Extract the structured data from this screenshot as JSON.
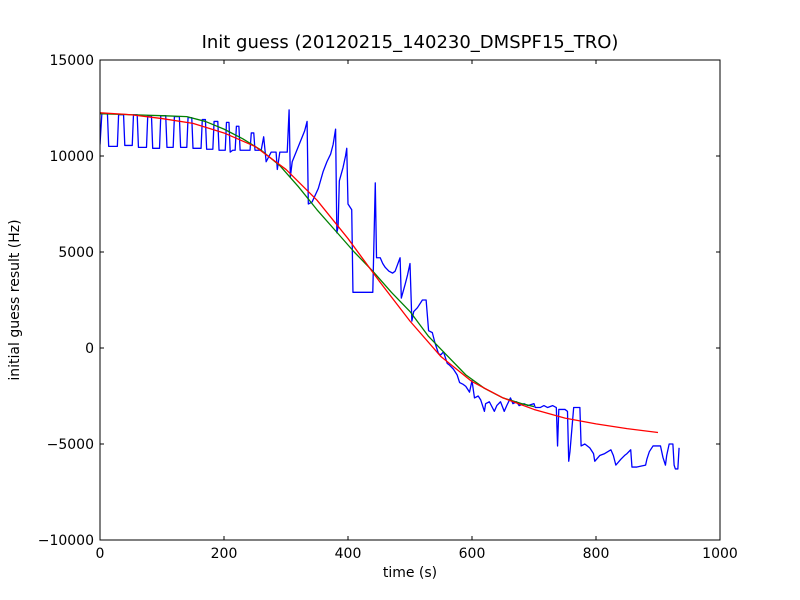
{
  "chart_data": {
    "type": "line",
    "title": "Init guess (20120215_140230_DMSPF15_TRO)",
    "xlabel": "time (s)",
    "ylabel": "initial guess result (Hz)",
    "xlim": [
      0,
      1000
    ],
    "ylim": [
      -10000,
      15000
    ],
    "xticks": [
      "0",
      "200",
      "400",
      "600",
      "800",
      "1000"
    ],
    "yticks": [
      "−10000",
      "−5000",
      "0",
      "5000",
      "10000",
      "15000"
    ],
    "grid": false,
    "legend": "none",
    "series": [
      {
        "color": "#0000ff",
        "points": [
          [
            0,
            10600
          ],
          [
            3,
            12200
          ],
          [
            12,
            12200
          ],
          [
            14,
            10500
          ],
          [
            28,
            10500
          ],
          [
            30,
            12150
          ],
          [
            38,
            12150
          ],
          [
            40,
            10550
          ],
          [
            52,
            10550
          ],
          [
            54,
            12150
          ],
          [
            60,
            12150
          ],
          [
            62,
            10450
          ],
          [
            75,
            10450
          ],
          [
            77,
            12100
          ],
          [
            83,
            12100
          ],
          [
            85,
            10400
          ],
          [
            96,
            10400
          ],
          [
            98,
            12100
          ],
          [
            106,
            12100
          ],
          [
            108,
            10450
          ],
          [
            118,
            10450
          ],
          [
            120,
            12050
          ],
          [
            128,
            12050
          ],
          [
            130,
            10450
          ],
          [
            140,
            10450
          ],
          [
            142,
            12000
          ],
          [
            148,
            12000
          ],
          [
            150,
            10400
          ],
          [
            163,
            10400
          ],
          [
            165,
            11900
          ],
          [
            170,
            11900
          ],
          [
            172,
            10350
          ],
          [
            182,
            10350
          ],
          [
            184,
            11800
          ],
          [
            190,
            11800
          ],
          [
            192,
            10300
          ],
          [
            202,
            10300
          ],
          [
            204,
            11750
          ],
          [
            208,
            11750
          ],
          [
            210,
            10200
          ],
          [
            214,
            10300
          ],
          [
            218,
            10300
          ],
          [
            220,
            11550
          ],
          [
            224,
            11550
          ],
          [
            226,
            10300
          ],
          [
            242,
            10300
          ],
          [
            244,
            11200
          ],
          [
            248,
            11200
          ],
          [
            250,
            10300
          ],
          [
            260,
            10300
          ],
          [
            264,
            11000
          ],
          [
            268,
            9700
          ],
          [
            276,
            10200
          ],
          [
            284,
            10200
          ],
          [
            286,
            9300
          ],
          [
            290,
            10200
          ],
          [
            302,
            10200
          ],
          [
            305,
            12400
          ],
          [
            307,
            8900
          ],
          [
            310,
            9700
          ],
          [
            320,
            10500
          ],
          [
            330,
            11300
          ],
          [
            334,
            11800
          ],
          [
            336,
            7500
          ],
          [
            342,
            7600
          ],
          [
            352,
            8300
          ],
          [
            360,
            9200
          ],
          [
            366,
            9700
          ],
          [
            372,
            10100
          ],
          [
            376,
            10600
          ],
          [
            380,
            11400
          ],
          [
            382,
            6000
          ],
          [
            384,
            6300
          ],
          [
            386,
            8700
          ],
          [
            392,
            9400
          ],
          [
            396,
            10000
          ],
          [
            398,
            10400
          ],
          [
            400,
            7500
          ],
          [
            406,
            7200
          ],
          [
            408,
            2900
          ],
          [
            440,
            2900
          ],
          [
            444,
            8600
          ],
          [
            446,
            4700
          ],
          [
            452,
            4700
          ],
          [
            456,
            4400
          ],
          [
            460,
            4200
          ],
          [
            466,
            4000
          ],
          [
            472,
            3900
          ],
          [
            476,
            4000
          ],
          [
            484,
            4700
          ],
          [
            486,
            2600
          ],
          [
            492,
            3300
          ],
          [
            496,
            3800
          ],
          [
            500,
            4400
          ],
          [
            503,
            1400
          ],
          [
            506,
            1900
          ],
          [
            512,
            2100
          ],
          [
            520,
            2500
          ],
          [
            526,
            2500
          ],
          [
            530,
            900
          ],
          [
            536,
            800
          ],
          [
            540,
            300
          ],
          [
            546,
            -300
          ],
          [
            550,
            -350
          ],
          [
            554,
            -200
          ],
          [
            560,
            -800
          ],
          [
            564,
            -900
          ],
          [
            570,
            -1100
          ],
          [
            576,
            -1400
          ],
          [
            580,
            -1800
          ],
          [
            586,
            -1900
          ],
          [
            590,
            -2000
          ],
          [
            596,
            -2300
          ],
          [
            600,
            -1700
          ],
          [
            604,
            -2600
          ],
          [
            610,
            -2500
          ],
          [
            614,
            -2700
          ],
          [
            620,
            -3300
          ],
          [
            622,
            -2900
          ],
          [
            628,
            -2800
          ],
          [
            636,
            -3300
          ],
          [
            640,
            -3000
          ],
          [
            646,
            -2800
          ],
          [
            652,
            -3300
          ],
          [
            656,
            -3000
          ],
          [
            662,
            -2600
          ],
          [
            666,
            -2900
          ],
          [
            672,
            -2800
          ],
          [
            676,
            -3000
          ],
          [
            684,
            -2900
          ],
          [
            690,
            -3000
          ],
          [
            700,
            -2900
          ],
          [
            702,
            -3100
          ],
          [
            710,
            -3100
          ],
          [
            716,
            -3000
          ],
          [
            722,
            -3100
          ],
          [
            730,
            -3000
          ],
          [
            736,
            -3100
          ],
          [
            738,
            -5100
          ],
          [
            740,
            -3200
          ],
          [
            750,
            -3200
          ],
          [
            754,
            -3300
          ],
          [
            756,
            -5900
          ],
          [
            758,
            -5400
          ],
          [
            764,
            -3100
          ],
          [
            774,
            -3100
          ],
          [
            776,
            -5100
          ],
          [
            782,
            -5000
          ],
          [
            790,
            -5200
          ],
          [
            796,
            -5500
          ],
          [
            798,
            -5900
          ],
          [
            806,
            -5600
          ],
          [
            814,
            -5500
          ],
          [
            824,
            -5300
          ],
          [
            828,
            -5600
          ],
          [
            832,
            -6100
          ],
          [
            840,
            -5800
          ],
          [
            846,
            -5600
          ],
          [
            850,
            -5500
          ],
          [
            856,
            -5300
          ],
          [
            858,
            -6200
          ],
          [
            866,
            -6200
          ],
          [
            880,
            -6100
          ],
          [
            882,
            -5800
          ],
          [
            886,
            -5400
          ],
          [
            892,
            -5100
          ],
          [
            904,
            -5100
          ],
          [
            908,
            -5700
          ],
          [
            912,
            -6100
          ],
          [
            914,
            -5600
          ],
          [
            918,
            -5000
          ],
          [
            924,
            -5000
          ],
          [
            926,
            -6100
          ],
          [
            928,
            -6300
          ],
          [
            932,
            -6300
          ],
          [
            934,
            -5200
          ]
        ]
      },
      {
        "color": "#008000",
        "points": [
          [
            0,
            12200
          ],
          [
            50,
            12150
          ],
          [
            100,
            12100
          ],
          [
            140,
            12050
          ],
          [
            170,
            11800
          ],
          [
            200,
            11400
          ],
          [
            230,
            10900
          ],
          [
            260,
            10300
          ],
          [
            290,
            9500
          ],
          [
            320,
            8400
          ],
          [
            350,
            7200
          ],
          [
            380,
            6100
          ],
          [
            410,
            5000
          ],
          [
            440,
            4000
          ],
          [
            470,
            2900
          ],
          [
            500,
            1900
          ],
          [
            530,
            600
          ],
          [
            560,
            -400
          ],
          [
            590,
            -1400
          ],
          [
            620,
            -2100
          ],
          [
            650,
            -2600
          ],
          [
            680,
            -2900
          ],
          [
            700,
            -3050
          ]
        ]
      },
      {
        "color": "#ff0000",
        "points": [
          [
            0,
            12250
          ],
          [
            50,
            12150
          ],
          [
            100,
            11950
          ],
          [
            150,
            11700
          ],
          [
            200,
            11200
          ],
          [
            250,
            10500
          ],
          [
            300,
            9300
          ],
          [
            350,
            7700
          ],
          [
            400,
            5700
          ],
          [
            450,
            3500
          ],
          [
            500,
            1400
          ],
          [
            550,
            -450
          ],
          [
            600,
            -1750
          ],
          [
            650,
            -2600
          ],
          [
            700,
            -3200
          ],
          [
            750,
            -3650
          ],
          [
            800,
            -3950
          ],
          [
            850,
            -4200
          ],
          [
            900,
            -4400
          ]
        ]
      }
    ]
  }
}
